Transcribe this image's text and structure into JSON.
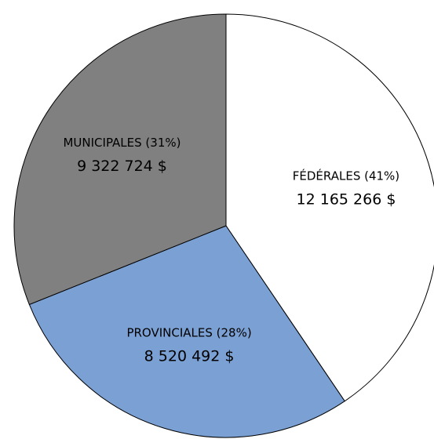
{
  "chart_data": {
    "type": "pie",
    "categories": [
      "FÉDÉRALES (41%)",
      "PROVINCIALES (28%)",
      "MUNICIPALES (31%)"
    ],
    "values": [
      12165266,
      8520492,
      9322724
    ],
    "value_labels": [
      "12 165 266 $",
      "8 520 492 $",
      "9 322 724 $"
    ],
    "colors": [
      "#ffffff",
      "#7ba0d4",
      "#808080"
    ]
  }
}
